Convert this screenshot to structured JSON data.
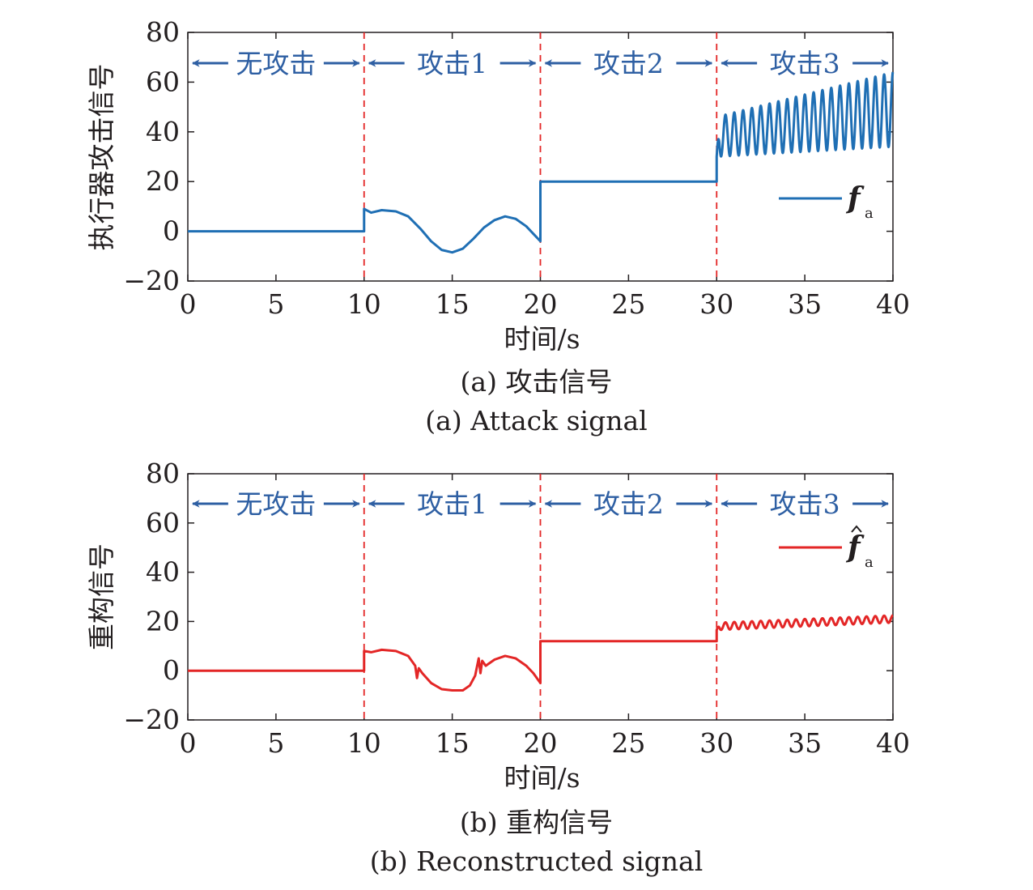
{
  "chart_data": [
    {
      "type": "line",
      "ylabel": "执行器攻击信号",
      "xlabel": "时间/s",
      "caption_cn": "(a) 攻击信号",
      "caption_en": "(a) Attack signal",
      "xlim": [
        0,
        40
      ],
      "ylim": [
        -20,
        80
      ],
      "xticks": [
        0,
        5,
        10,
        15,
        20,
        25,
        30,
        35,
        40
      ],
      "yticks": [
        -20,
        0,
        20,
        40,
        60,
        80
      ],
      "xtick_labels": [
        "0",
        "5",
        "10",
        "15",
        "20",
        "25",
        "30",
        "35",
        "40"
      ],
      "ytick_labels": [
        "−20",
        "0",
        "20",
        "40",
        "60",
        "80"
      ],
      "vlines": [
        10,
        20,
        30
      ],
      "regions": [
        {
          "label": "无攻击",
          "from": 0,
          "to": 10
        },
        {
          "label": "攻击1",
          "from": 10,
          "to": 20
        },
        {
          "label": "攻击2",
          "from": 20,
          "to": 30
        },
        {
          "label": "攻击3",
          "from": 30,
          "to": 40
        }
      ],
      "legend": {
        "symbol": "f",
        "subscript": "a",
        "hat": false,
        "placement": "right"
      },
      "series": [
        {
          "name": "f_a",
          "color": "#1f6fb4",
          "segments": [
            {
              "kind": "points",
              "x": [
                0,
                10
              ],
              "y": [
                0,
                0
              ]
            },
            {
              "kind": "points",
              "x": [
                10,
                10,
                10.4,
                11,
                11.8,
                12.5,
                13.2,
                13.8,
                14.4,
                15.0,
                15.6,
                16.2,
                16.8,
                17.4,
                18.0,
                18.6,
                19.2,
                19.6,
                20.0
              ],
              "y": [
                0,
                9,
                7.5,
                8.5,
                8,
                6,
                1,
                -4,
                -7.5,
                -8.5,
                -7,
                -3,
                1.5,
                4.5,
                6,
                5,
                2,
                -1,
                -4
              ]
            },
            {
              "kind": "points",
              "x": [
                20,
                20,
                30
              ],
              "y": [
                -4,
                20,
                20
              ]
            },
            {
              "kind": "oscillation",
              "x_start": 30,
              "x_end": 40,
              "center_start": 38,
              "center_end": 49,
              "amp_start": 8,
              "amp_end": 15,
              "period": 0.5
            }
          ]
        }
      ]
    },
    {
      "type": "line",
      "ylabel": "重构信号",
      "xlabel": "时间/s",
      "caption_cn": "(b) 重构信号",
      "caption_en": "(b) Reconstructed signal",
      "xlim": [
        0,
        40
      ],
      "ylim": [
        -20,
        80
      ],
      "xticks": [
        0,
        5,
        10,
        15,
        20,
        25,
        30,
        35,
        40
      ],
      "yticks": [
        -20,
        0,
        20,
        40,
        60,
        80
      ],
      "xtick_labels": [
        "0",
        "5",
        "10",
        "15",
        "20",
        "25",
        "30",
        "35",
        "40"
      ],
      "ytick_labels": [
        "−20",
        "0",
        "20",
        "40",
        "60",
        "80"
      ],
      "vlines": [
        10,
        20,
        30
      ],
      "regions": [
        {
          "label": "无攻击",
          "from": 0,
          "to": 10
        },
        {
          "label": "攻击1",
          "from": 10,
          "to": 20
        },
        {
          "label": "攻击2",
          "from": 20,
          "to": 30
        },
        {
          "label": "攻击3",
          "from": 30,
          "to": 40
        }
      ],
      "legend": {
        "symbol": "f",
        "subscript": "a",
        "hat": true,
        "placement": "right"
      },
      "series": [
        {
          "name": "f̂_a",
          "color": "#e32626",
          "segments": [
            {
              "kind": "points",
              "x": [
                0,
                10
              ],
              "y": [
                0,
                0
              ]
            },
            {
              "kind": "points",
              "x": [
                10,
                10,
                10.4,
                11,
                11.8,
                12.5,
                12.9,
                13.0,
                13.1,
                13.3,
                13.8,
                14.4,
                15.0,
                15.6,
                16.0,
                16.3,
                16.5,
                16.6,
                16.7,
                16.9,
                17.4,
                18.0,
                18.6,
                19.2,
                19.6,
                20.0
              ],
              "y": [
                0,
                8,
                7.5,
                8.5,
                8,
                6,
                2,
                -3,
                1,
                -1,
                -5,
                -7.5,
                -8,
                -8,
                -6,
                -2,
                5,
                -1,
                4,
                2,
                4.5,
                6,
                5,
                2,
                -1,
                -5
              ]
            },
            {
              "kind": "points",
              "x": [
                20,
                20,
                30
              ],
              "y": [
                -5,
                12,
                12
              ]
            },
            {
              "kind": "oscillation",
              "x_start": 30,
              "x_end": 40,
              "center_start": 18,
              "center_end": 21,
              "amp_start": 1.5,
              "amp_end": 1.5,
              "period": 0.5
            }
          ]
        }
      ]
    }
  ]
}
